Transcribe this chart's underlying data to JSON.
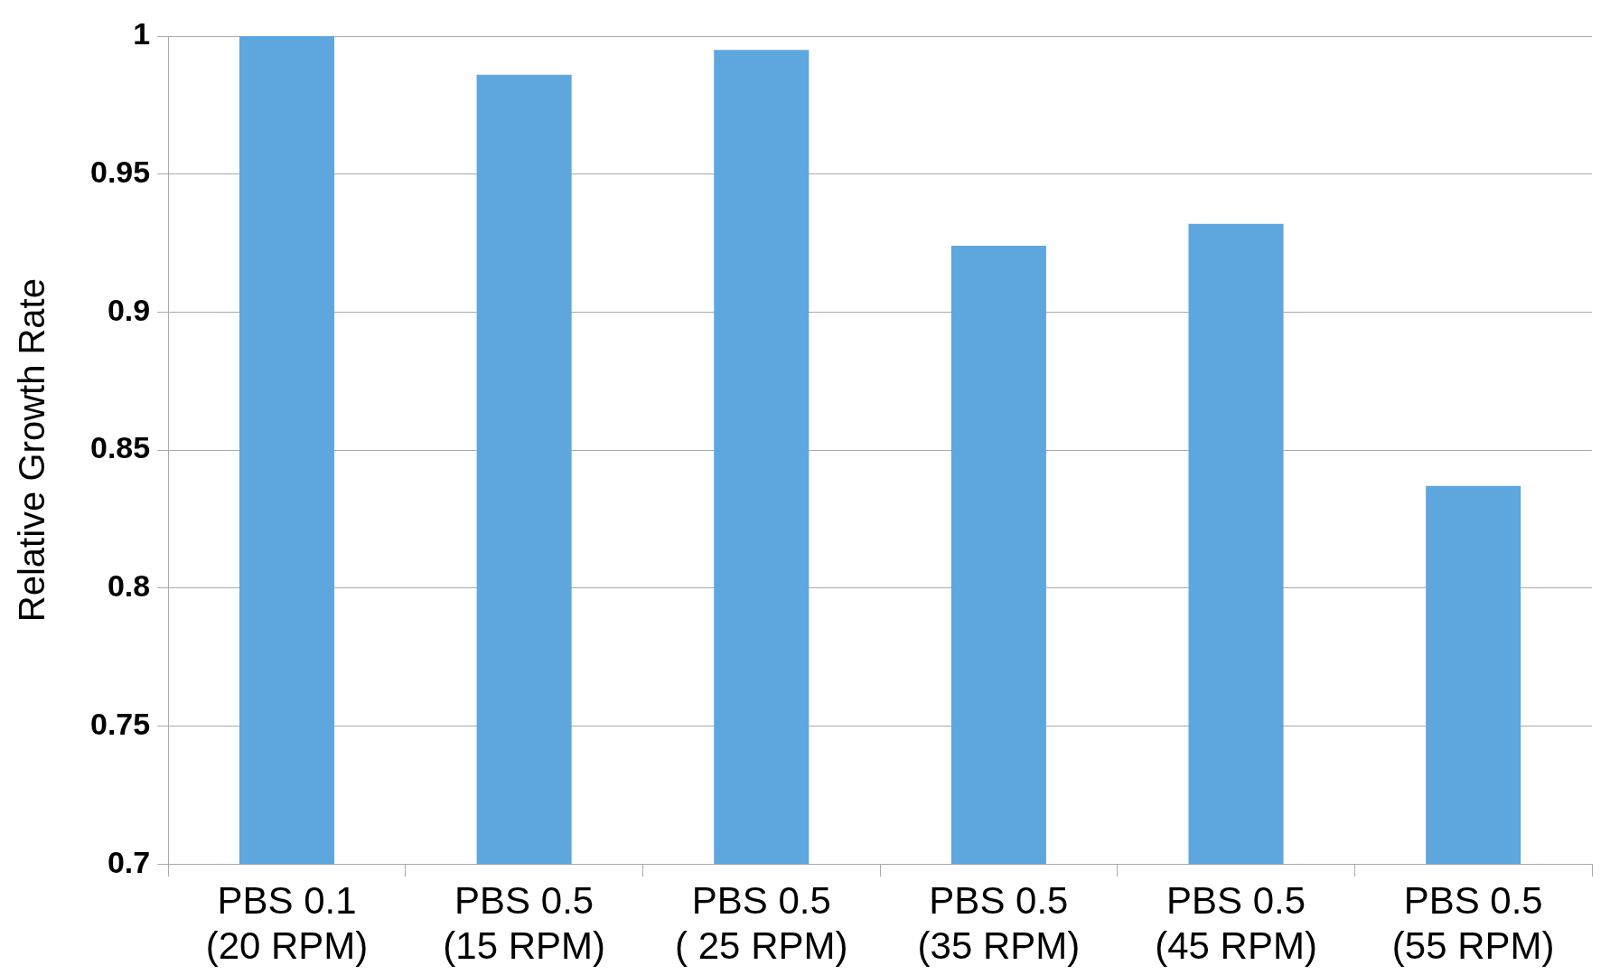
{
  "chart_data": {
    "type": "bar",
    "ylabel": "Relative Growth Rate",
    "categories": [
      "PBS 0.1\n(20 RPM)",
      "PBS 0.5\n(15 RPM)",
      "PBS 0.5\n( 25 RPM)",
      "PBS 0.5\n(35 RPM)",
      "PBS 0.5\n(45 RPM)",
      "PBS 0.5\n(55 RPM)"
    ],
    "values": [
      1.0,
      0.986,
      0.995,
      0.924,
      0.932,
      0.837
    ],
    "color": "#5ea6de",
    "ylim": [
      0.7,
      1
    ],
    "yticks": [
      {
        "value": 0.7,
        "label": "0.7"
      },
      {
        "value": 0.75,
        "label": "0.75"
      },
      {
        "value": 0.8,
        "label": "0.8"
      },
      {
        "value": 0.85,
        "label": "0.85"
      },
      {
        "value": 0.9,
        "label": "0.9"
      },
      {
        "value": 0.95,
        "label": "0.95"
      },
      {
        "value": 1,
        "label": "1"
      }
    ],
    "grid": "y",
    "legend": false
  }
}
